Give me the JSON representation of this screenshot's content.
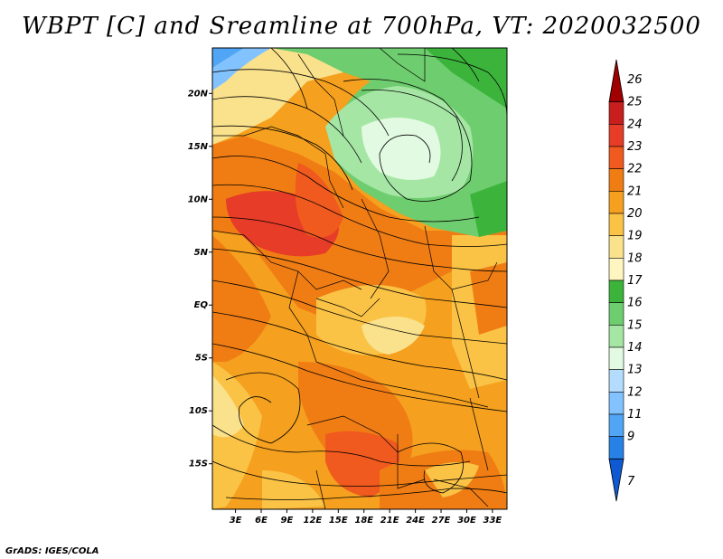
{
  "title": "WBPT [C] and Sreamline at 700hPa, VT: 2020032500",
  "credit": "GrADS: IGES/COLA",
  "map": {
    "lat_labels": [
      "20N",
      "15N",
      "10N",
      "5N",
      "EQ",
      "5S",
      "10S",
      "15S"
    ],
    "lon_labels": [
      "3E",
      "6E",
      "9E",
      "12E",
      "15E",
      "18E",
      "21E",
      "24E",
      "27E",
      "30E",
      "33E"
    ],
    "lat_values": [
      20,
      15,
      10,
      5,
      0,
      -5,
      -10,
      -15
    ],
    "lon_values": [
      3,
      6,
      9,
      12,
      15,
      18,
      21,
      24,
      27,
      30,
      33
    ],
    "lat_range": [
      -19.3,
      24.3
    ],
    "lon_range": [
      0.3,
      34.7
    ]
  },
  "colorbar": {
    "labels": [
      "26",
      "25",
      "24",
      "23",
      "22",
      "21",
      "20",
      "19",
      "18",
      "17",
      "16",
      "15",
      "14",
      "13",
      "12",
      "11",
      "9",
      "7"
    ],
    "colors": [
      "#a00000",
      "#c81e1e",
      "#e63c28",
      "#f05a1e",
      "#f07d14",
      "#f5a01e",
      "#fac346",
      "#fae18c",
      "#fff5c0",
      "#3cb43c",
      "#6ecd6e",
      "#a5e6a5",
      "#e1fae1",
      "#b4dcff",
      "#82c3ff",
      "#50a5f5",
      "#2882e6",
      "#0f5ad2"
    ]
  }
}
